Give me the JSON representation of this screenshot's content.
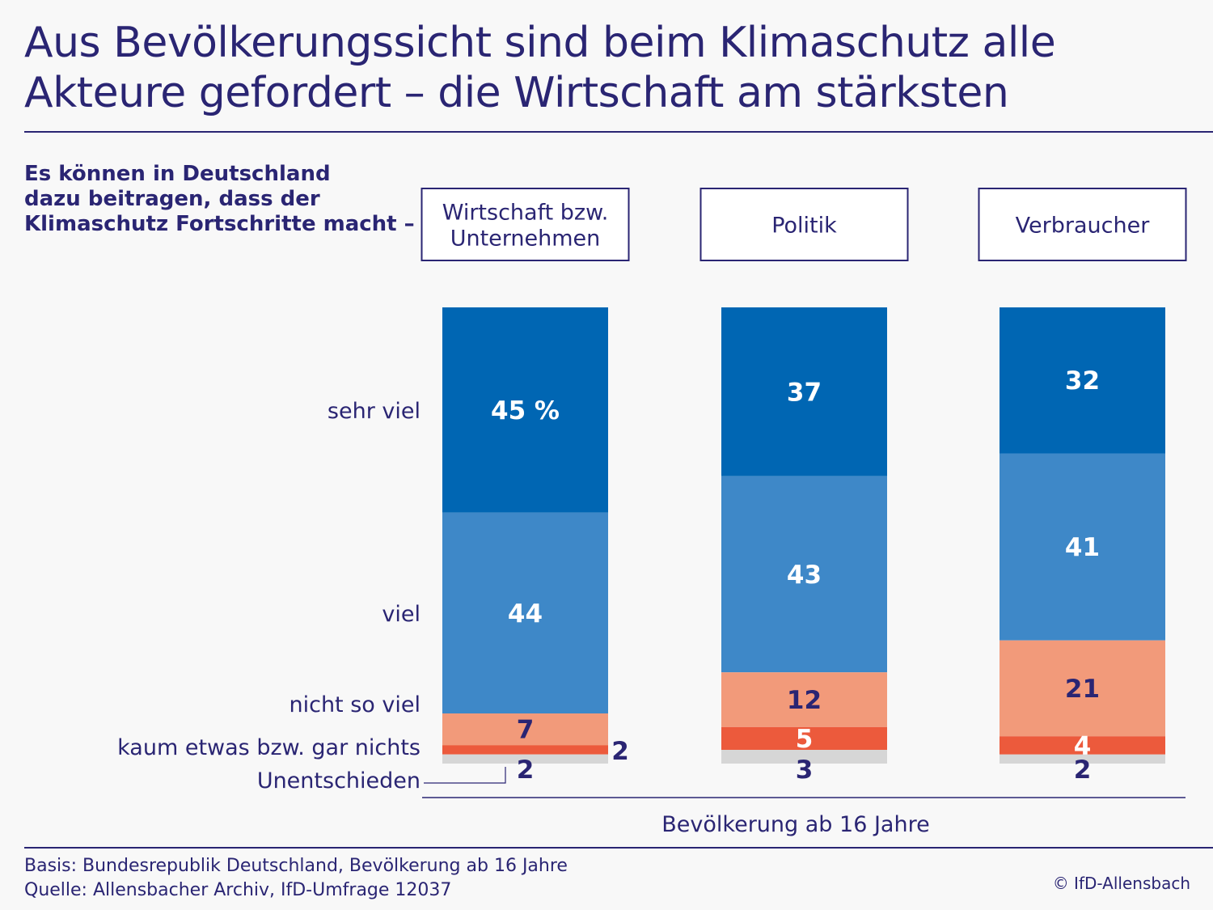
{
  "title": {
    "line1": "Aus Bevölkerungssicht sind beim Klimaschutz alle",
    "line2": "Akteure gefordert – die Wirtschaft am stärksten"
  },
  "question": {
    "line1": "Es können in Deutschland",
    "line2": "dazu beitragen, dass der",
    "line3": "Klimaschutz Fortschritte macht –"
  },
  "footer": {
    "basis": "Basis: Bundesrepublik Deutschland, Bevölkerung ab 16 Jahre",
    "source": "Quelle: Allensbacher Archiv, IfD-Umfrage 12037",
    "copyright": "© IfD-Allensbach"
  },
  "colors": {
    "sehr_viel": "#0066b3",
    "viel": "#3e88c8",
    "nicht_so_viel": "#f29a7a",
    "kaum_etwas": "#ec5a3c",
    "unentschieden": "#d6d6d6",
    "text_dark": "#2a2573"
  },
  "chart_data": {
    "type": "bar",
    "stacked": true,
    "xlabel": "Bevölkerung ab 16 Jahre",
    "unit_label": "%",
    "categories": [
      {
        "label_lines": [
          "Wirtschaft bzw.",
          "Unternehmen"
        ]
      },
      {
        "label_lines": [
          "Politik"
        ]
      },
      {
        "label_lines": [
          "Verbraucher"
        ]
      }
    ],
    "series": [
      {
        "name": "sehr viel",
        "label_lines": [
          "sehr viel"
        ],
        "values": [
          45,
          37,
          32
        ],
        "label_color": "white"
      },
      {
        "name": "viel",
        "label_lines": [
          "viel"
        ],
        "values": [
          44,
          43,
          41
        ],
        "label_color": "white"
      },
      {
        "name": "nicht so viel",
        "label_lines": [
          "nicht so viel"
        ],
        "values": [
          7,
          12,
          21
        ],
        "label_color": "dark"
      },
      {
        "name": "kaum etwas bzw. gar nichts",
        "label_lines": [
          "kaum etwas bzw. gar nichts"
        ],
        "values": [
          2,
          5,
          4
        ],
        "label_color": "white"
      },
      {
        "name": "Unentschieden",
        "label_lines": [
          "Unentschieden"
        ],
        "values": [
          2,
          3,
          2
        ],
        "label_color": "dark"
      }
    ]
  }
}
